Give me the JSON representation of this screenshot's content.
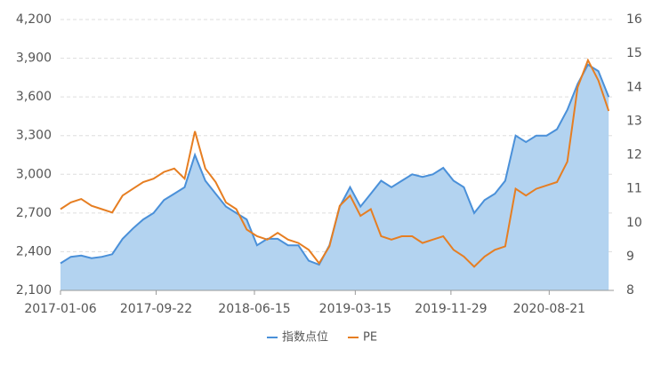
{
  "chart_data": {
    "type": "line",
    "x": [
      "2017-01-06",
      "2017-02-03",
      "2017-03-03",
      "2017-03-31",
      "2017-04-28",
      "2017-05-26",
      "2017-06-23",
      "2017-07-21",
      "2017-08-18",
      "2017-09-15",
      "2017-10-13",
      "2017-11-10",
      "2017-12-08",
      "2018-01-05",
      "2018-02-02",
      "2018-03-02",
      "2018-03-30",
      "2018-04-27",
      "2018-05-25",
      "2018-06-22",
      "2018-07-20",
      "2018-08-17",
      "2018-09-14",
      "2018-10-12",
      "2018-11-09",
      "2018-12-07",
      "2019-01-04",
      "2019-02-01",
      "2019-03-01",
      "2019-03-29",
      "2019-04-26",
      "2019-05-24",
      "2019-06-21",
      "2019-07-19",
      "2019-08-16",
      "2019-09-13",
      "2019-10-11",
      "2019-11-08",
      "2019-12-06",
      "2020-01-03",
      "2020-01-31",
      "2020-02-28",
      "2020-03-27",
      "2020-04-24",
      "2020-05-22",
      "2020-06-19",
      "2020-07-17",
      "2020-08-14",
      "2020-09-11",
      "2020-10-09",
      "2020-11-06",
      "2020-12-04",
      "2021-01-01",
      "2021-01-29"
    ],
    "series": [
      {
        "name": "指数点位",
        "color": "#4a90d9",
        "area": true,
        "values": [
          2310,
          2360,
          2370,
          2350,
          2360,
          2380,
          2500,
          2580,
          2650,
          2700,
          2800,
          2850,
          2900,
          3150,
          2950,
          2850,
          2750,
          2700,
          2650,
          2450,
          2500,
          2500,
          2450,
          2450,
          2330,
          2300,
          2450,
          2750,
          2900,
          2750,
          2850,
          2950,
          2900,
          2950,
          3000,
          2980,
          3000,
          3050,
          2950,
          2900,
          2700,
          2800,
          2850,
          2950,
          3300,
          3250,
          3300,
          3300,
          3350,
          3500,
          3700,
          3850,
          3800,
          3600
        ]
      },
      {
        "name": "PE",
        "color": "#e67e22",
        "axis": "y2",
        "values": [
          10.4,
          10.6,
          10.7,
          10.5,
          10.4,
          10.3,
          10.8,
          11,
          11.2,
          11.3,
          11.5,
          11.6,
          11.3,
          12.7,
          11.6,
          11.2,
          10.6,
          10.4,
          9.8,
          9.6,
          9.5,
          9.7,
          9.5,
          9.4,
          9.2,
          8.8,
          9.3,
          10.5,
          10.8,
          10.2,
          10.4,
          9.6,
          9.5,
          9.6,
          9.6,
          9.4,
          9.5,
          9.6,
          9.2,
          9.0,
          8.7,
          9.0,
          9.2,
          9.3,
          11,
          10.8,
          11,
          11.1,
          11.2,
          11.8,
          14,
          14.8,
          14.2,
          13.3
        ]
      }
    ],
    "xlim": [
      "2017-01-06",
      "2021-02-12"
    ],
    "xticks": [
      "2017-01-06",
      "2017-09-22",
      "2018-06-15",
      "2019-03-15",
      "2019-11-29",
      "2020-08-21"
    ],
    "ylim": [
      2100,
      4200
    ],
    "yticks": [
      {
        "value": 2100,
        "label": "2,100"
      },
      {
        "value": 2400,
        "label": "2,400"
      },
      {
        "value": 2700,
        "label": "2,700"
      },
      {
        "value": 3000,
        "label": "3,000"
      },
      {
        "value": 3300,
        "label": "3,300"
      },
      {
        "value": 3600,
        "label": "3,600"
      },
      {
        "value": 3900,
        "label": "3,900"
      },
      {
        "value": 4200,
        "label": "4,200"
      }
    ],
    "y2lim": [
      8,
      16
    ],
    "y2ticks": [
      8,
      9,
      10,
      11,
      12,
      13,
      14,
      15,
      16
    ],
    "grid": true,
    "legend": "bottom"
  }
}
